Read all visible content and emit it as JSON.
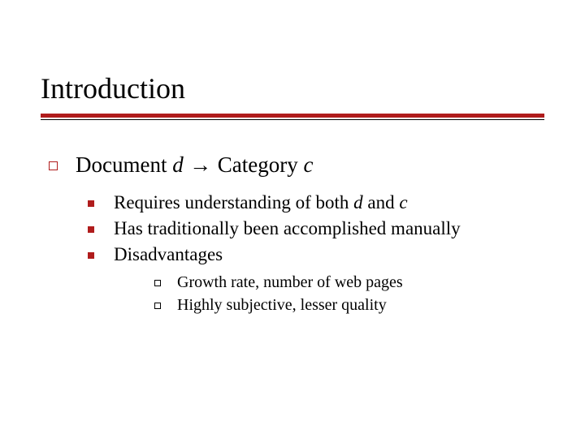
{
  "colors": {
    "accent": "#b01c1c",
    "rule_thin": "#000000",
    "bg": "#ffffff",
    "text": "#000000"
  },
  "title": "Introduction",
  "level1": {
    "pre": "Document ",
    "d": "d",
    "arrow": " → ",
    "post": "Category ",
    "c": "c"
  },
  "level2": {
    "item0_pre": "Requires understanding of both ",
    "item0_d": "d",
    "item0_mid": " and ",
    "item0_c": "c",
    "item1": "Has traditionally been accomplished manually",
    "item2": "Disadvantages"
  },
  "level3": {
    "item0": "Growth rate, number of web pages",
    "item1": "Highly subjective, lesser quality"
  }
}
